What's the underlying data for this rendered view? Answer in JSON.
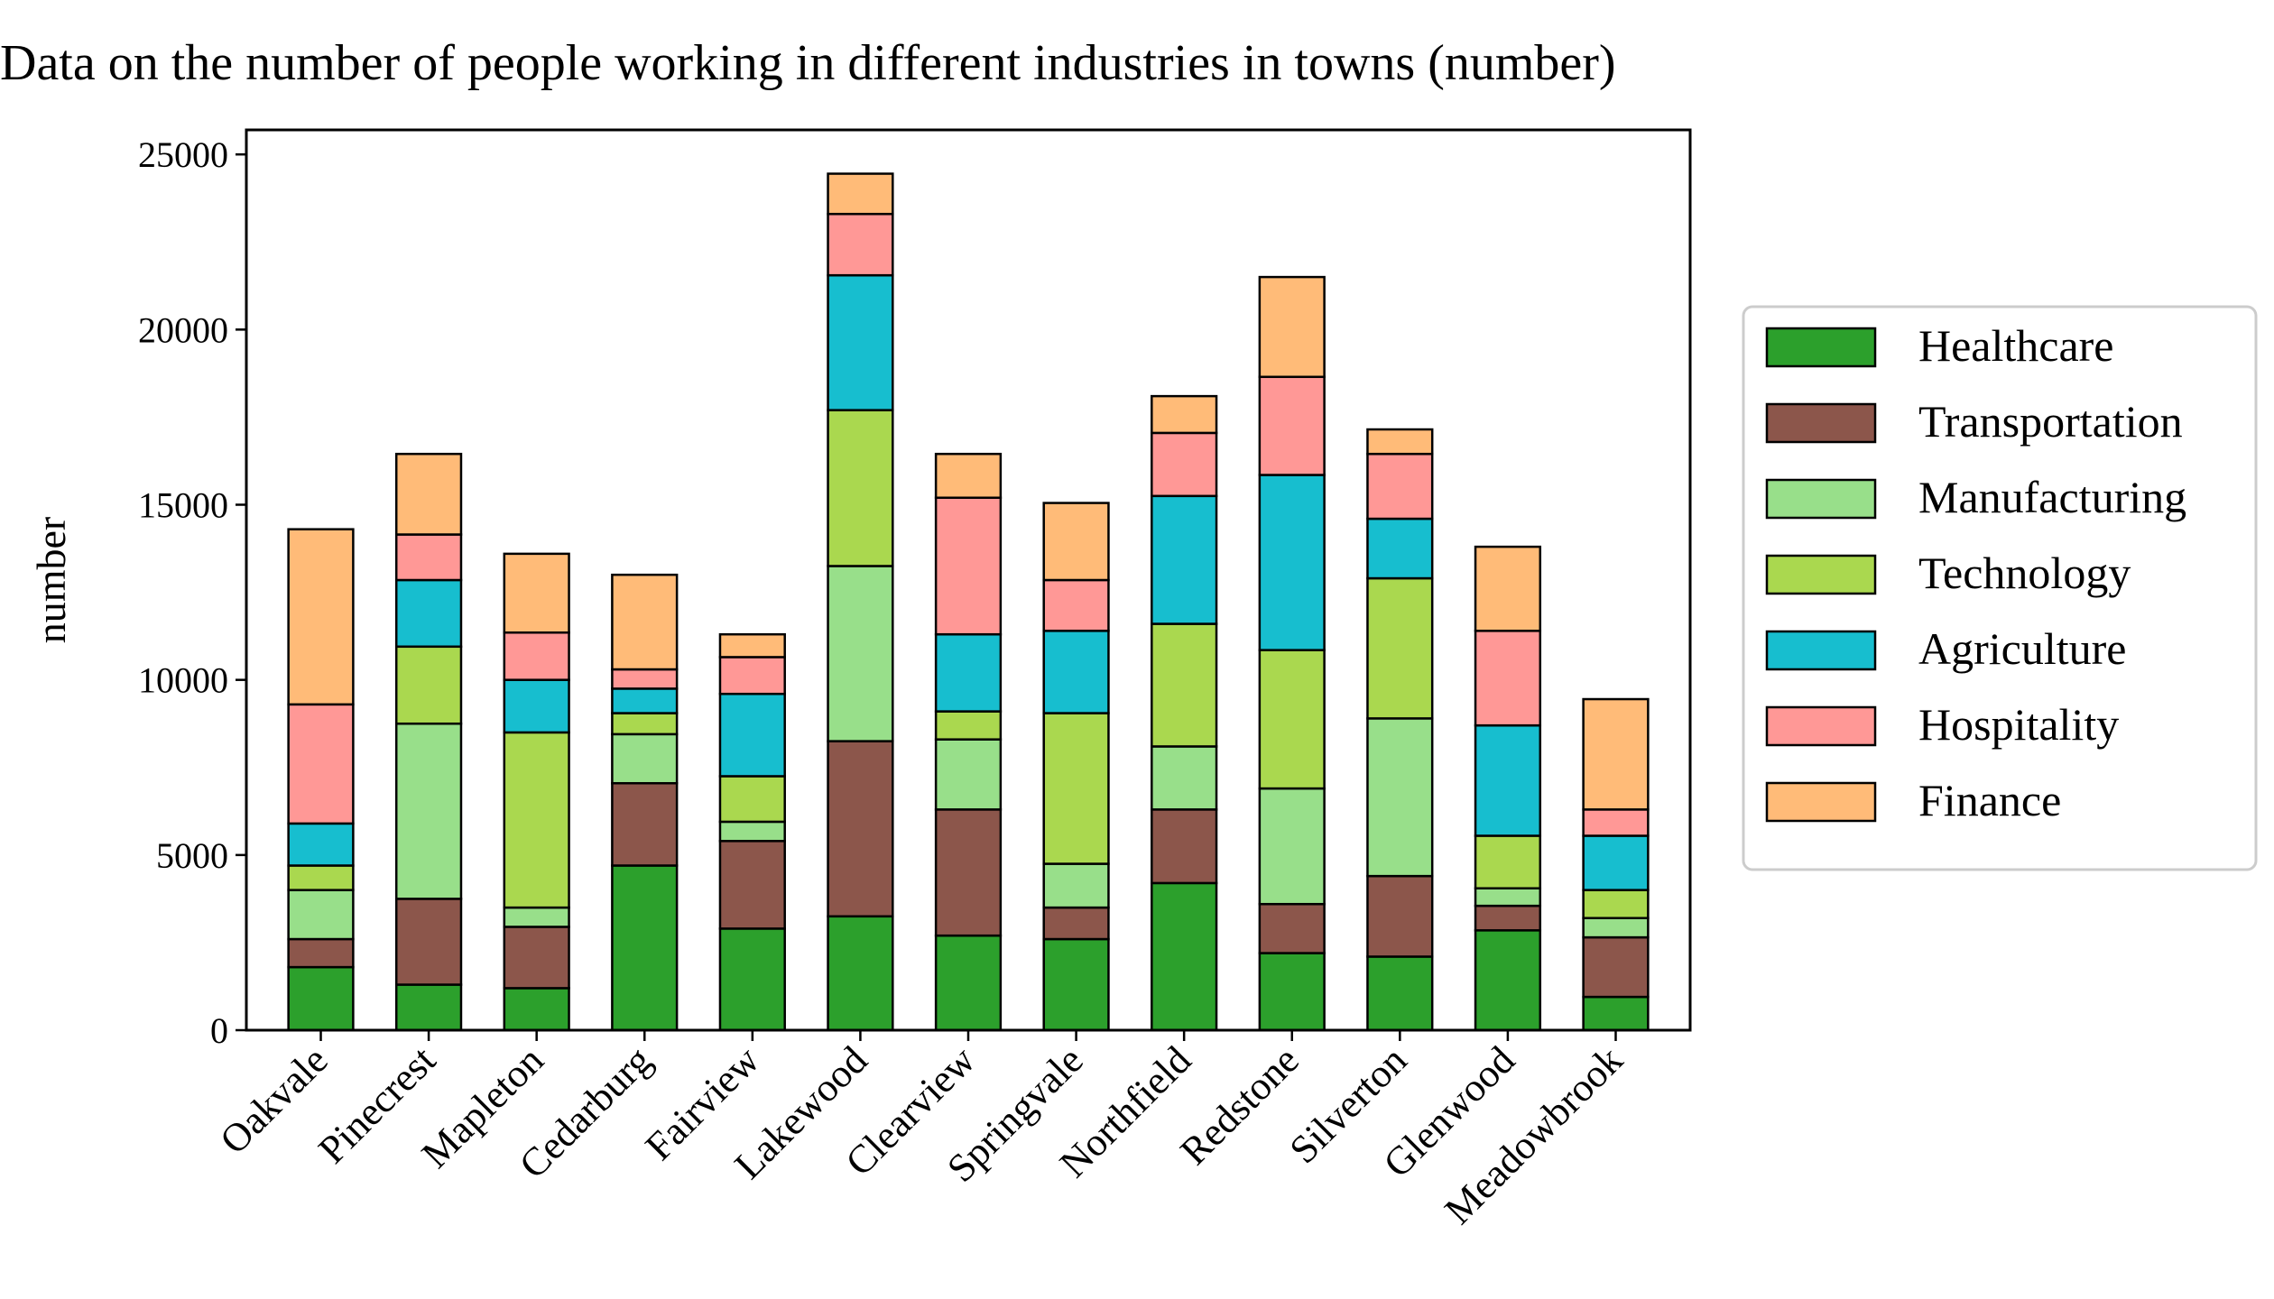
{
  "chart_data": {
    "type": "bar",
    "stacked": true,
    "title": "Data on the number of people working in different industries in towns (number)",
    "xlabel": "",
    "ylabel": "number",
    "ylim": [
      0,
      25700
    ],
    "yticks": [
      0,
      5000,
      10000,
      15000,
      20000,
      25000
    ],
    "grid": false,
    "legend_position": "right",
    "categories": [
      "Oakvale",
      "Pinecrest",
      "Mapleton",
      "Cedarburg",
      "Fairview",
      "Lakewood",
      "Clearview",
      "Springvale",
      "Northfield",
      "Redstone",
      "Silverton",
      "Glenwood",
      "Meadowbrook"
    ],
    "series": [
      {
        "name": "Healthcare",
        "color": "#2ca02c",
        "values": [
          1800,
          1300,
          1200,
          4700,
          2900,
          3250,
          2700,
          2600,
          4200,
          2200,
          2100,
          2850,
          950
        ]
      },
      {
        "name": "Transportation",
        "color": "#8c564b",
        "values": [
          800,
          2450,
          1750,
          2350,
          2500,
          5000,
          3600,
          900,
          2100,
          1400,
          2300,
          700,
          1700
        ]
      },
      {
        "name": "Manufacturing",
        "color": "#98df8a",
        "values": [
          1400,
          5000,
          550,
          1400,
          550,
          5000,
          2000,
          1250,
          1800,
          3300,
          4500,
          500,
          550
        ]
      },
      {
        "name": "Technology",
        "color": "#aad84f",
        "values": [
          700,
          2200,
          5000,
          600,
          1300,
          4450,
          800,
          4300,
          3500,
          3950,
          4000,
          1500,
          800
        ]
      },
      {
        "name": "Agriculture",
        "color": "#17becf",
        "values": [
          1200,
          1900,
          1500,
          700,
          2350,
          3850,
          2200,
          2350,
          3650,
          5000,
          1700,
          3150,
          1550
        ]
      },
      {
        "name": "Hospitality",
        "color": "#ff9896",
        "values": [
          3400,
          1300,
          1350,
          550,
          1050,
          1750,
          3900,
          1450,
          1800,
          2800,
          1850,
          2700,
          750
        ]
      },
      {
        "name": "Finance",
        "color": "#ffbb78",
        "values": [
          5000,
          2300,
          2250,
          2700,
          650,
          1150,
          1250,
          2200,
          1050,
          2850,
          700,
          2400,
          3150
        ]
      }
    ]
  }
}
